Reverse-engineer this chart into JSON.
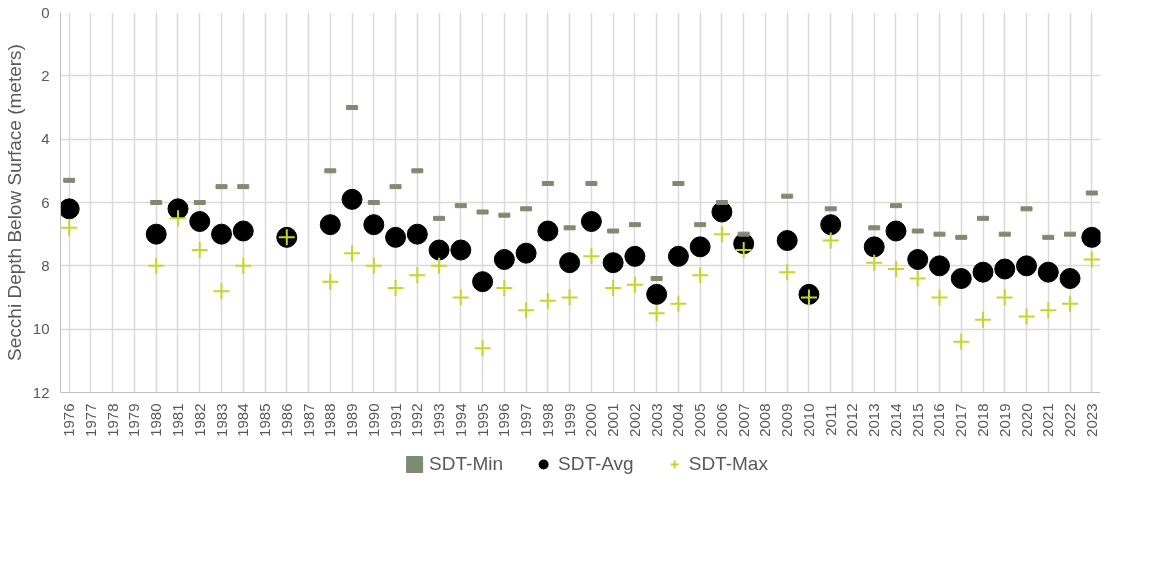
{
  "chart_data": {
    "type": "scatter",
    "ylabel": "Secchi Depth Below Surface (meters)",
    "categories": [
      "1976",
      "1977",
      "1978",
      "1979",
      "1980",
      "1981",
      "1982",
      "1983",
      "1984",
      "1985",
      "1986",
      "1987",
      "1988",
      "1989",
      "1990",
      "1991",
      "1992",
      "1993",
      "1994",
      "1995",
      "1996",
      "1997",
      "1998",
      "1999",
      "2000",
      "2001",
      "2002",
      "2003",
      "2004",
      "2005",
      "2006",
      "2007",
      "2008",
      "2009",
      "2010",
      "2011",
      "2012",
      "2013",
      "2014",
      "2015",
      "2016",
      "2017",
      "2018",
      "2019",
      "2020",
      "2021",
      "2022",
      "2023"
    ],
    "series": [
      {
        "name": "SDT-Min",
        "color": "#7f8a70",
        "marker": "square",
        "values": [
          5.3,
          null,
          null,
          null,
          6.0,
          null,
          6.0,
          5.5,
          5.5,
          null,
          null,
          null,
          5.0,
          3.0,
          6.0,
          5.5,
          5.0,
          6.5,
          6.1,
          6.3,
          6.4,
          6.2,
          5.4,
          6.8,
          5.4,
          6.9,
          6.7,
          8.4,
          5.4,
          6.7,
          6.0,
          7.0,
          null,
          5.8,
          null,
          6.2,
          null,
          6.8,
          6.1,
          6.9,
          7.0,
          7.1,
          6.5,
          7.0,
          6.2,
          7.1,
          7.0,
          5.7
        ]
      },
      {
        "name": "SDT-Avg",
        "color": "#000000",
        "marker": "circle",
        "values": [
          6.2,
          null,
          null,
          null,
          7.0,
          6.2,
          6.6,
          7.0,
          6.9,
          null,
          7.1,
          null,
          6.7,
          5.9,
          6.7,
          7.1,
          7.0,
          7.5,
          7.5,
          8.5,
          7.8,
          7.6,
          6.9,
          7.9,
          6.6,
          7.9,
          7.7,
          8.9,
          7.7,
          7.4,
          6.3,
          7.3,
          null,
          7.2,
          8.9,
          6.7,
          null,
          7.4,
          6.9,
          7.8,
          8.0,
          8.4,
          8.2,
          8.1,
          8.0,
          8.2,
          8.4,
          7.1
        ]
      },
      {
        "name": "SDT-Max",
        "color": "#c4d52c",
        "marker": "cross",
        "values": [
          6.8,
          null,
          null,
          null,
          8.0,
          6.5,
          7.5,
          8.8,
          8.0,
          null,
          7.1,
          null,
          8.5,
          7.6,
          8.0,
          8.7,
          8.3,
          8.0,
          9.0,
          10.6,
          8.7,
          9.4,
          9.1,
          9.0,
          7.7,
          8.7,
          8.6,
          9.5,
          9.2,
          8.3,
          7.0,
          7.5,
          null,
          8.2,
          9.0,
          7.2,
          null,
          7.9,
          8.1,
          8.4,
          9.0,
          10.4,
          9.7,
          9.0,
          9.6,
          9.4,
          9.2,
          7.8
        ]
      }
    ],
    "ylim": [
      12,
      0
    ],
    "yticks": [
      0,
      2,
      4,
      6,
      8,
      10,
      12
    ],
    "grid": true,
    "legend": "bottom"
  }
}
